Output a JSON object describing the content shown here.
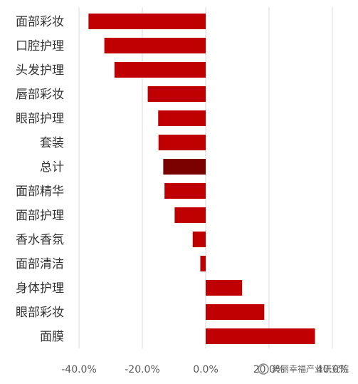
{
  "chart_data": {
    "type": "bar",
    "orientation": "horizontal",
    "categories": [
      "面部彩妆",
      "口腔护理",
      "头发护理",
      "唇部彩妆",
      "眼部护理",
      "套装",
      "总计",
      "面部精华",
      "面部护理",
      "香水香氛",
      "面部清洁",
      "身体护理",
      "眼部彩妆",
      "面膜"
    ],
    "values": [
      -37.0,
      -32.0,
      -28.8,
      -18.3,
      -15.0,
      -14.9,
      -13.4,
      -13.0,
      -9.8,
      -4.1,
      -1.7,
      11.5,
      18.5,
      34.5
    ],
    "value_unit": "%",
    "xlim": [
      -45,
      45
    ],
    "xticks": [
      -40,
      -20,
      0,
      20,
      40
    ],
    "xtick_labels": [
      "-40.0%",
      "-20.0%",
      "0.0%",
      "20.0%",
      "40.0%"
    ],
    "grid": true,
    "colors": {
      "bar": "#c00000",
      "highlight": "#7b0000",
      "grid": "#d9d9d9"
    },
    "highlight_category": "总计",
    "title": "",
    "xlabel": "",
    "ylabel": ""
  },
  "watermark": "美丽幸福产业研究院"
}
